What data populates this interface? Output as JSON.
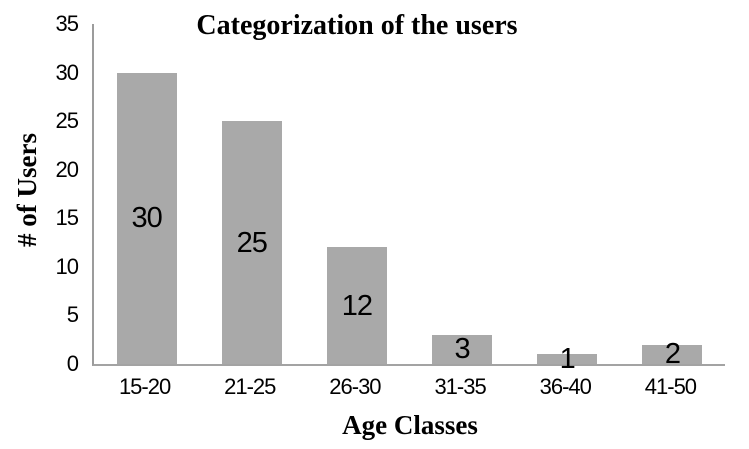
{
  "chart_data": {
    "type": "bar",
    "title": "Categorization of the users",
    "xlabel": "Age Classes",
    "ylabel": "# of Users",
    "categories": [
      "15-20",
      "21-25",
      "26-30",
      "31-35",
      "36-40",
      "41-50"
    ],
    "values": [
      30,
      25,
      12,
      3,
      1,
      2
    ],
    "data_labels": [
      "30",
      "25",
      "12",
      "3",
      "1",
      "2"
    ],
    "ylim": [
      0,
      35
    ],
    "yticks": [
      0,
      5,
      10,
      15,
      20,
      25,
      30,
      35
    ],
    "grid": false,
    "legend": "none",
    "bar_color": "#a9a9a9",
    "axis_color": "#9c9c9c",
    "text_color": "#000000"
  }
}
